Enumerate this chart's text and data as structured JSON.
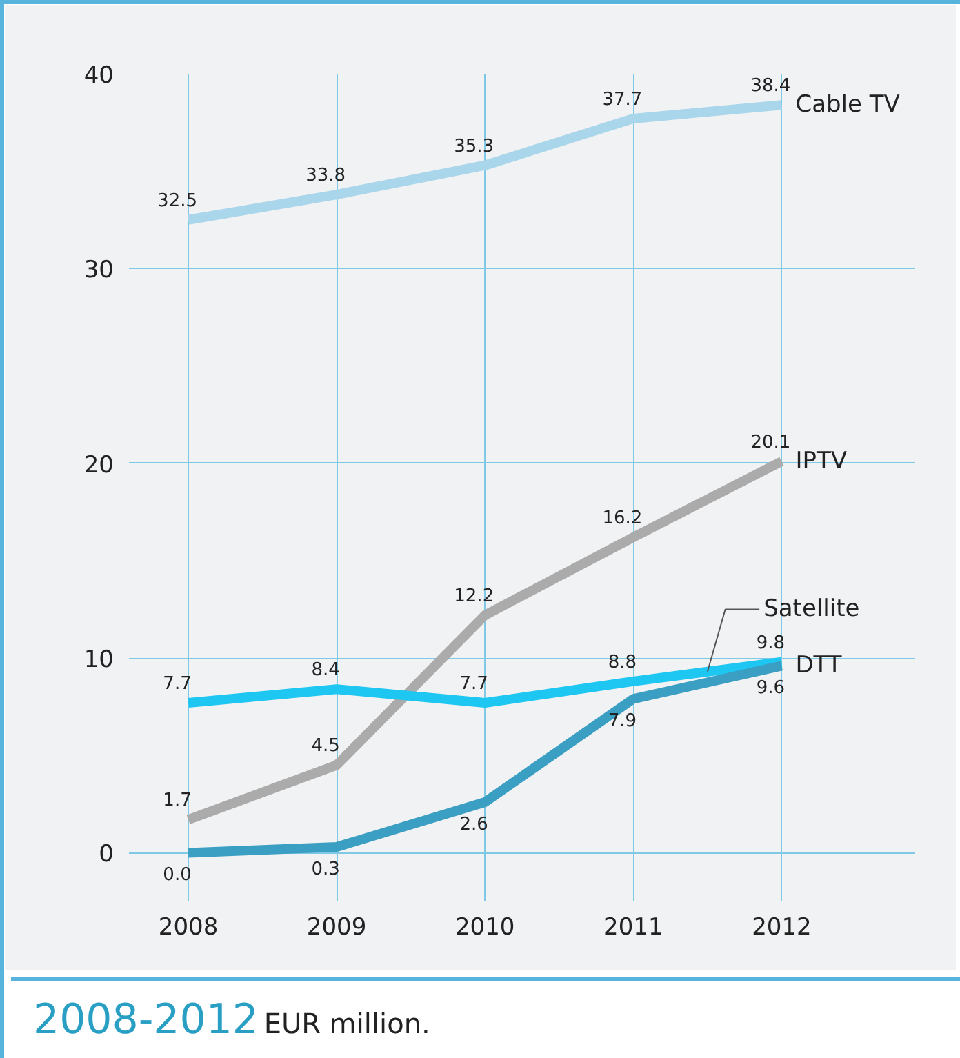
{
  "chart_data": {
    "type": "line",
    "title": "2008-2012",
    "subtitle": "EUR million.",
    "x": [
      2008,
      2009,
      2010,
      2011,
      2012
    ],
    "series": [
      {
        "name": "Cable TV",
        "color": "#a9d6ea",
        "values": [
          32.5,
          33.8,
          35.3,
          37.7,
          38.4
        ]
      },
      {
        "name": "IPTV",
        "color": "#ababab",
        "values": [
          1.7,
          4.5,
          12.2,
          16.2,
          20.1
        ]
      },
      {
        "name": "Satellite",
        "color": "#1ec6f2",
        "values": [
          7.7,
          8.4,
          7.7,
          8.8,
          9.8
        ]
      },
      {
        "name": "DTT",
        "color": "#3a9fc2",
        "values": [
          0.0,
          0.3,
          2.6,
          7.9,
          9.6
        ],
        "value_labels": [
          "0.0",
          "0.3",
          "2.6",
          "7.9",
          "9.6"
        ]
      }
    ],
    "xlim": [
      2007.6,
      2012.9
    ],
    "ylim": [
      -2.5,
      40
    ],
    "xticks": [
      2008,
      2009,
      2010,
      2011,
      2012
    ],
    "yticks": [
      0,
      10,
      20,
      30,
      40
    ],
    "grid": true,
    "data_labels": true,
    "marker": "none",
    "line_style": "solid"
  }
}
